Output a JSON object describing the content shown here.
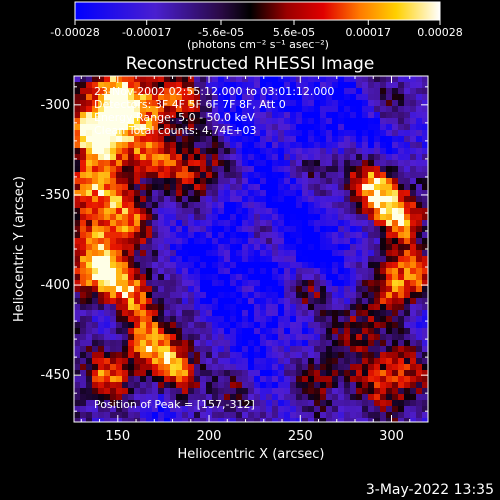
{
  "colorbar": {
    "ticks": [
      "-0.00028",
      "-0.00017",
      "-5.6e-05",
      "5.6e-05",
      "0.00017",
      "0.00028"
    ],
    "tick_values": [
      -0.00028,
      -0.00017,
      -5.6e-05,
      5.6e-05,
      0.00017,
      0.00028
    ],
    "range": [
      -0.00028,
      0.00028
    ],
    "units_label": "(photons cm⁻² s⁻¹ asec⁻²)"
  },
  "chart_data": {
    "type": "heatmap",
    "title": "Reconstructed RHESSI Image",
    "xlabel": "Heliocentric X (arcsec)",
    "ylabel": "Heliocentric Y (arcsec)",
    "xlim": [
      126,
      320
    ],
    "ylim": [
      -476,
      -284
    ],
    "xticks": [
      150,
      200,
      250,
      300
    ],
    "yticks": [
      -300,
      -350,
      -400,
      -450
    ],
    "colormap": "blue-purple-black-red-orange-yellow-white",
    "colors": [
      "#0000ff",
      "#6a2fd6",
      "#000000",
      "#cc0000",
      "#ff7f00",
      "#ffd000",
      "#ffffff"
    ],
    "peak_position": [
      157,
      -312
    ],
    "annotations": [
      "23-Nov-2002 02:55:12.000 to 03:01:12.000",
      "Detectors: 3F 4F 5F 6F 7F 8F, Att 0",
      "Energy Range: 5.0 - 50.0 keV",
      "Clean    Total counts: 4.74E+03"
    ],
    "peak_label": "Position of Peak = [157,-312]"
  },
  "footer": {
    "date": "3-May-2022 13:35"
  }
}
